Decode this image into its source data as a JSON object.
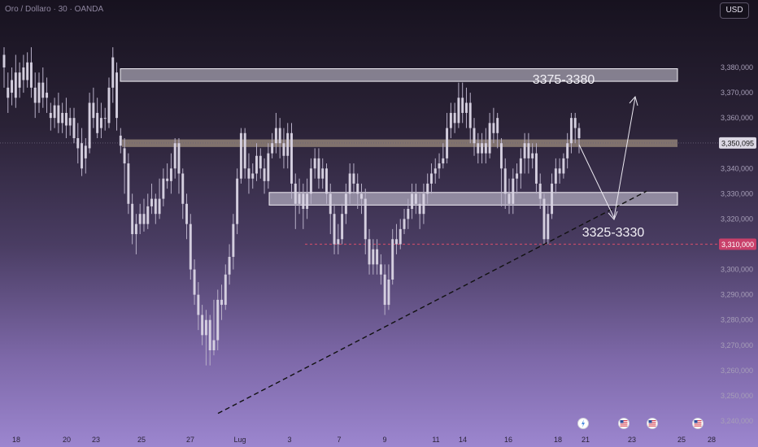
{
  "header": {
    "symbol_line": "Oro / Dollaro · 30 · OANDA",
    "currency_button": "USD"
  },
  "colors": {
    "candle": "#d8d3e3",
    "candle_wick": "#b8b0c8",
    "zone_fill": "#d6d1e0",
    "zone_border": "#f2f0f6",
    "resistance_band": "#8a7b72",
    "red_dotted": "#c24b6a",
    "last_price_bg": "#dcd8e4",
    "red_label_bg": "#c9406a"
  },
  "chart_data": {
    "type": "candlestick",
    "y_axis": {
      "min": 3240,
      "max": 3380,
      "ticks": [
        "3,380,000",
        "3,370,000",
        "3,360,000",
        "3,350,000",
        "3,340,000",
        "3,330,000",
        "3,320,000",
        "3,310,000",
        "3,300,000",
        "3,290,000",
        "3,280,000",
        "3,270,000",
        "3,260,000",
        "3,250,000",
        "3,240,000"
      ]
    },
    "x_axis": {
      "ticks": [
        "18",
        "20",
        "23",
        "25",
        "27",
        "Lug",
        "3",
        "7",
        "9",
        "11",
        "14",
        "16",
        "18",
        "21",
        "23",
        "25",
        "28"
      ]
    },
    "current_price": 3350.095,
    "current_price_label": "3,350,095",
    "red_level": 3310,
    "red_level_label": "3,310,000",
    "zones": [
      {
        "label": "3375-3380",
        "from": 3374.5,
        "to": 3379.5
      },
      {
        "label": "3325-3330",
        "from": 3325.5,
        "to": 3330.5
      }
    ],
    "resistance_band": {
      "from": 3348.5,
      "to": 3351.5
    },
    "trendline": {
      "start_price": 3243,
      "end_price": 3331
    },
    "event_icons": [
      "lightning-icon",
      "us-flag-icon",
      "us-flag-icon",
      "us-flag-icon"
    ],
    "candles": [
      [
        3385,
        3380,
        3388,
        3372
      ],
      [
        3372,
        3368,
        3378,
        3362
      ],
      [
        3375,
        3370,
        3380,
        3365
      ],
      [
        3368,
        3378,
        3385,
        3364
      ],
      [
        3378,
        3372,
        3382,
        3368
      ],
      [
        3380,
        3375,
        3385,
        3370
      ],
      [
        3375,
        3382,
        3386,
        3372
      ],
      [
        3382,
        3372,
        3388,
        3368
      ],
      [
        3372,
        3366,
        3378,
        3360
      ],
      [
        3366,
        3374,
        3378,
        3362
      ],
      [
        3374,
        3368,
        3380,
        3364
      ],
      [
        3368,
        3370,
        3376,
        3362
      ],
      [
        3362,
        3360,
        3366,
        3355
      ],
      [
        3360,
        3365,
        3368,
        3356
      ],
      [
        3365,
        3358,
        3370,
        3354
      ],
      [
        3358,
        3362,
        3366,
        3354
      ],
      [
        3362,
        3357,
        3368,
        3352
      ],
      [
        3357,
        3360,
        3364,
        3353
      ],
      [
        3360,
        3352,
        3364,
        3350
      ],
      [
        3352,
        3348,
        3358,
        3342
      ],
      [
        3350,
        3340,
        3356,
        3337
      ],
      [
        3344,
        3349,
        3352,
        3338
      ],
      [
        3348,
        3366,
        3370,
        3346
      ],
      [
        3366,
        3360,
        3372,
        3356
      ],
      [
        3362,
        3354,
        3368,
        3352
      ],
      [
        3356,
        3360,
        3366,
        3352
      ],
      [
        3360,
        3360,
        3364,
        3355
      ],
      [
        3358,
        3372,
        3376,
        3356
      ],
      [
        3372,
        3384,
        3388,
        3366
      ],
      [
        3378,
        3360,
        3382,
        3355
      ],
      [
        3353,
        3349,
        3356,
        3346
      ],
      [
        3348,
        3342,
        3352,
        3330
      ],
      [
        3342,
        3326,
        3346,
        3322
      ],
      [
        3326,
        3314,
        3330,
        3310
      ],
      [
        3314,
        3318,
        3322,
        3306
      ],
      [
        3318,
        3322,
        3326,
        3314
      ],
      [
        3322,
        3318,
        3328,
        3315
      ],
      [
        3318,
        3325,
        3330,
        3316
      ],
      [
        3325,
        3328,
        3334,
        3322
      ],
      [
        3328,
        3322,
        3330,
        3318
      ],
      [
        3322,
        3328,
        3336,
        3320
      ],
      [
        3328,
        3336,
        3340,
        3325
      ],
      [
        3336,
        3335,
        3342,
        3332
      ],
      [
        3335,
        3340,
        3346,
        3330
      ],
      [
        3340,
        3350,
        3352,
        3336
      ],
      [
        3350,
        3338,
        3352,
        3330
      ],
      [
        3338,
        3326,
        3340,
        3320
      ],
      [
        3326,
        3318,
        3330,
        3312
      ],
      [
        3318,
        3300,
        3322,
        3296
      ],
      [
        3300,
        3290,
        3304,
        3286
      ],
      [
        3290,
        3282,
        3295,
        3276
      ],
      [
        3282,
        3274,
        3286,
        3270
      ],
      [
        3274,
        3280,
        3284,
        3262
      ],
      [
        3280,
        3268,
        3282,
        3262
      ],
      [
        3268,
        3272,
        3288,
        3266
      ],
      [
        3272,
        3288,
        3292,
        3268
      ],
      [
        3288,
        3286,
        3294,
        3280
      ],
      [
        3286,
        3298,
        3302,
        3284
      ],
      [
        3298,
        3305,
        3310,
        3294
      ],
      [
        3305,
        3318,
        3322,
        3300
      ],
      [
        3318,
        3336,
        3340,
        3314
      ],
      [
        3336,
        3354,
        3356,
        3334
      ],
      [
        3354,
        3340,
        3356,
        3336
      ],
      [
        3340,
        3336,
        3346,
        3330
      ],
      [
        3336,
        3338,
        3342,
        3332
      ],
      [
        3338,
        3345,
        3350,
        3335
      ],
      [
        3345,
        3340,
        3348,
        3336
      ],
      [
        3340,
        3335,
        3344,
        3330
      ],
      [
        3335,
        3346,
        3350,
        3332
      ],
      [
        3346,
        3350,
        3354,
        3344
      ],
      [
        3350,
        3356,
        3362,
        3346
      ],
      [
        3356,
        3350,
        3360,
        3344
      ],
      [
        3350,
        3345,
        3356,
        3340
      ],
      [
        3345,
        3354,
        3358,
        3340
      ],
      [
        3354,
        3334,
        3358,
        3328
      ],
      [
        3334,
        3326,
        3338,
        3316
      ],
      [
        3326,
        3330,
        3336,
        3322
      ],
      [
        3330,
        3324,
        3334,
        3316
      ],
      [
        3324,
        3330,
        3336,
        3320
      ],
      [
        3330,
        3340,
        3344,
        3326
      ],
      [
        3340,
        3344,
        3348,
        3336
      ],
      [
        3344,
        3336,
        3348,
        3332
      ],
      [
        3336,
        3340,
        3344,
        3332
      ],
      [
        3340,
        3330,
        3342,
        3326
      ],
      [
        3330,
        3322,
        3334,
        3314
      ],
      [
        3322,
        3310,
        3326,
        3306
      ],
      [
        3310,
        3312,
        3318,
        3306
      ],
      [
        3312,
        3322,
        3326,
        3310
      ],
      [
        3322,
        3330,
        3334,
        3318
      ],
      [
        3330,
        3338,
        3342,
        3326
      ],
      [
        3338,
        3334,
        3342,
        3330
      ],
      [
        3334,
        3330,
        3338,
        3324
      ],
      [
        3330,
        3328,
        3334,
        3322
      ],
      [
        3328,
        3312,
        3332,
        3306
      ],
      [
        3312,
        3302,
        3316,
        3298
      ],
      [
        3302,
        3308,
        3312,
        3298
      ],
      [
        3308,
        3302,
        3312,
        3298
      ],
      [
        3302,
        3298,
        3306,
        3294
      ],
      [
        3298,
        3286,
        3302,
        3282
      ],
      [
        3286,
        3296,
        3302,
        3284
      ],
      [
        3296,
        3312,
        3316,
        3294
      ],
      [
        3312,
        3310,
        3318,
        3306
      ],
      [
        3310,
        3316,
        3320,
        3308
      ],
      [
        3316,
        3320,
        3324,
        3314
      ],
      [
        3320,
        3324,
        3328,
        3316
      ],
      [
        3324,
        3330,
        3334,
        3320
      ],
      [
        3330,
        3326,
        3334,
        3322
      ],
      [
        3326,
        3322,
        3330,
        3316
      ],
      [
        3322,
        3330,
        3334,
        3318
      ],
      [
        3330,
        3334,
        3338,
        3326
      ],
      [
        3334,
        3338,
        3342,
        3330
      ],
      [
        3338,
        3340,
        3344,
        3334
      ],
      [
        3340,
        3342,
        3346,
        3336
      ],
      [
        3342,
        3344,
        3350,
        3340
      ],
      [
        3344,
        3356,
        3362,
        3342
      ],
      [
        3356,
        3362,
        3366,
        3352
      ],
      [
        3362,
        3358,
        3366,
        3354
      ],
      [
        3358,
        3368,
        3374,
        3356
      ],
      [
        3368,
        3362,
        3374,
        3358
      ],
      [
        3362,
        3366,
        3372,
        3356
      ],
      [
        3366,
        3356,
        3370,
        3350
      ],
      [
        3356,
        3350,
        3360,
        3345
      ],
      [
        3350,
        3346,
        3354,
        3342
      ],
      [
        3346,
        3350,
        3354,
        3342
      ],
      [
        3350,
        3346,
        3356,
        3342
      ],
      [
        3346,
        3358,
        3362,
        3344
      ],
      [
        3358,
        3354,
        3364,
        3350
      ],
      [
        3354,
        3360,
        3362,
        3348
      ],
      [
        3350,
        3340,
        3352,
        3325
      ],
      [
        3340,
        3330,
        3344,
        3324
      ],
      [
        3330,
        3326,
        3336,
        3322
      ],
      [
        3326,
        3336,
        3340,
        3322
      ],
      [
        3336,
        3338,
        3342,
        3330
      ],
      [
        3338,
        3344,
        3348,
        3332
      ],
      [
        3344,
        3350,
        3354,
        3338
      ],
      [
        3350,
        3344,
        3354,
        3338
      ],
      [
        3344,
        3346,
        3350,
        3340
      ],
      [
        3346,
        3334,
        3350,
        3330
      ],
      [
        3334,
        3328,
        3338,
        3324
      ],
      [
        3328,
        3312,
        3330,
        3310
      ],
      [
        3312,
        3322,
        3326,
        3310
      ],
      [
        3322,
        3334,
        3338,
        3320
      ],
      [
        3334,
        3340,
        3344,
        3330
      ],
      [
        3340,
        3338,
        3344,
        3334
      ],
      [
        3338,
        3344,
        3346,
        3336
      ],
      [
        3344,
        3350,
        3354,
        3340
      ],
      [
        3350,
        3360,
        3362,
        3346
      ],
      [
        3360,
        3356,
        3362,
        3350
      ],
      [
        3356,
        3352,
        3358,
        3346
      ]
    ]
  }
}
